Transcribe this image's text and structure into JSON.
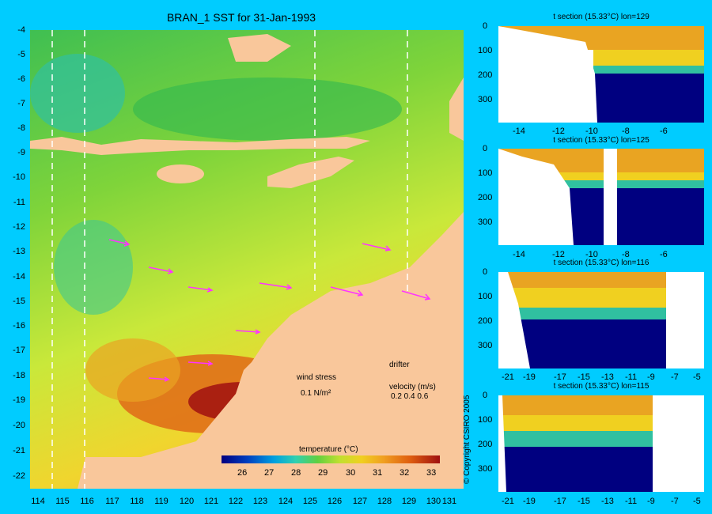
{
  "title": "BRAN_1 SST for 31-Jan-1993",
  "map": {
    "y_labels": [
      "-4",
      "-5",
      "-6",
      "-7",
      "-8",
      "-9",
      "-10",
      "-11",
      "-12",
      "-13",
      "-14",
      "-15",
      "-16",
      "-17",
      "-18",
      "-19",
      "-20",
      "-21",
      "-22"
    ],
    "x_labels": [
      "114",
      "115",
      "116",
      "117",
      "118",
      "119",
      "120",
      "121",
      "122",
      "123",
      "124",
      "125",
      "126",
      "127",
      "128",
      "129",
      "130",
      "131"
    ],
    "section_lons": [
      114.5,
      115.8,
      125.4,
      129.2
    ]
  },
  "colorbar": {
    "label": "temperature (°C)",
    "ticks": [
      "26",
      "27",
      "28",
      "29",
      "30",
      "31",
      "32",
      "33"
    ]
  },
  "legend": {
    "wind_stress": "wind stress",
    "wind_value": "0.1 N/m²",
    "drifter": "drifter",
    "velocity": "velocity (m/s)",
    "velocity_values": "0.2 0.4 0.6"
  },
  "panels": [
    {
      "title": "t section (15.33°C) lon=129",
      "x_ticks": [
        "-14",
        "-12",
        "-10",
        "-8",
        "-6"
      ],
      "y_ticks": [
        "0",
        "100",
        "200",
        "300"
      ]
    },
    {
      "title": "t section (15.33°C) lon=125",
      "x_ticks": [
        "-14",
        "-12",
        "-10",
        "-8",
        "-6"
      ],
      "y_ticks": [
        "0",
        "100",
        "200",
        "300"
      ]
    },
    {
      "title": "t section (15.33°C) lon=116",
      "x_ticks": [
        "-21",
        "-19",
        "-17",
        "-15",
        "-13",
        "-11",
        "-9",
        "-7",
        "-5"
      ],
      "y_ticks": [
        "0",
        "100",
        "200",
        "300"
      ]
    },
    {
      "title": "t section (15.33°C) lon=115",
      "x_ticks": [
        "-21",
        "-19",
        "-17",
        "-15",
        "-13",
        "-11",
        "-9",
        "-7",
        "-5"
      ],
      "y_ticks": [
        "0",
        "100",
        "200",
        "300"
      ]
    }
  ],
  "copyright": "© Copyright CSIRO 2005",
  "colors": {
    "background": "#00ccff",
    "land": "#f9c79b",
    "arrow": "#ff33ff"
  }
}
